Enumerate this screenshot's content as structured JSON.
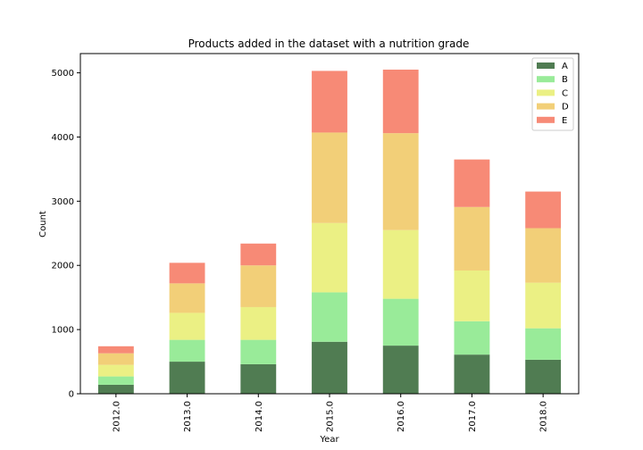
{
  "chart_data": {
    "type": "bar",
    "stacked": true,
    "title": "Products added in the dataset with a nutrition grade",
    "xlabel": "Year",
    "ylabel": "Count",
    "ylim": [
      0,
      5300
    ],
    "yticks": [
      0,
      1000,
      2000,
      3000,
      4000,
      5000
    ],
    "categories": [
      "2012.0",
      "2013.0",
      "2014.0",
      "2015.0",
      "2016.0",
      "2017.0",
      "2018.0"
    ],
    "series": [
      {
        "name": "A",
        "color": "#507c52",
        "values": [
          140,
          500,
          460,
          810,
          750,
          610,
          530
        ]
      },
      {
        "name": "B",
        "color": "#99eb99",
        "values": [
          130,
          340,
          380,
          770,
          730,
          520,
          490
        ]
      },
      {
        "name": "C",
        "color": "#ebf084",
        "values": [
          180,
          420,
          510,
          1080,
          1070,
          790,
          710
        ]
      },
      {
        "name": "D",
        "color": "#f2cf78",
        "values": [
          180,
          460,
          650,
          1410,
          1510,
          990,
          850
        ]
      },
      {
        "name": "E",
        "color": "#f78a76",
        "values": [
          110,
          320,
          340,
          960,
          990,
          740,
          570
        ]
      }
    ],
    "legend": {
      "position": "top-right"
    },
    "grid": false
  }
}
